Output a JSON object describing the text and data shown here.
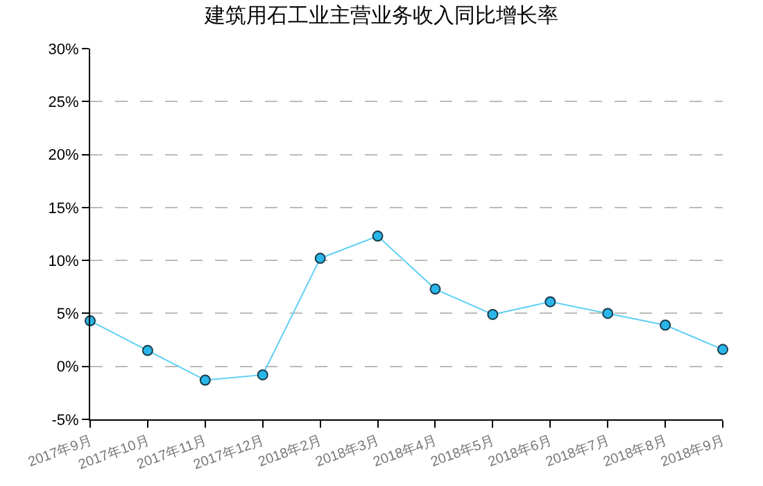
{
  "chart_data": {
    "type": "line",
    "title": "建筑用石工业主营业务收入同比增长率",
    "categories": [
      "2017年9月",
      "2017年10月",
      "2017年11月",
      "2017年12月",
      "2018年2月",
      "2018年3月",
      "2018年4月",
      "2018年5月",
      "2018年6月",
      "2018年7月",
      "2018年8月",
      "2018年9月"
    ],
    "series": [
      {
        "color": "#5fd0f5",
        "values": [
          4.3,
          1.5,
          -1.3,
          -0.8,
          10.2,
          12.3,
          7.3,
          4.9,
          6.1,
          5.0,
          3.9,
          1.6
        ]
      }
    ],
    "ylim": [
      -5,
      30
    ],
    "yticks": [
      {
        "value": -5,
        "label": "-5%"
      },
      {
        "value": 0,
        "label": "0%"
      },
      {
        "value": 5,
        "label": "5%"
      },
      {
        "value": 10,
        "label": "10%"
      },
      {
        "value": 15,
        "label": "15%"
      },
      {
        "value": 20,
        "label": "20%"
      },
      {
        "value": 25,
        "label": "25%"
      },
      {
        "value": 30,
        "label": "30%"
      }
    ],
    "grid": "y",
    "marker": "circle",
    "line_style": "solid"
  }
}
